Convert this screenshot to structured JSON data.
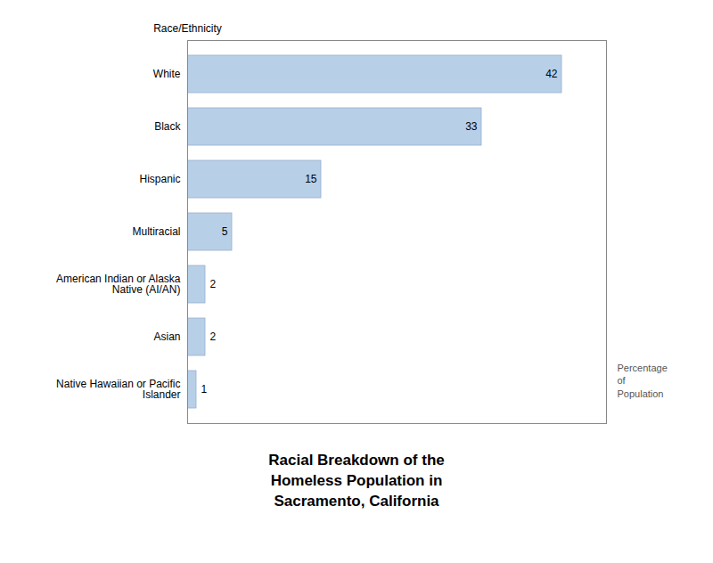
{
  "chart_data": {
    "type": "bar",
    "orientation": "horizontal",
    "title": "Racial Breakdown of the\nHomeless Population in\nSacramento, California",
    "categories": [
      "Native Hawaiian or Pacific\nIslander",
      "Asian",
      "American Indian or Alaska\nNative (AI/AN)",
      "Multiracial",
      "Hispanic",
      "Black",
      "White"
    ],
    "values": [
      1,
      2,
      2,
      5,
      15,
      33,
      42
    ],
    "color": "#b8cfe8",
    "xlabel": "Percentage\nof\nPopulation",
    "ylabel": "Race/Ethnicity",
    "xlim": [
      0,
      47
    ],
    "data_labels": true,
    "tick_labels": "y",
    "grid": false
  }
}
